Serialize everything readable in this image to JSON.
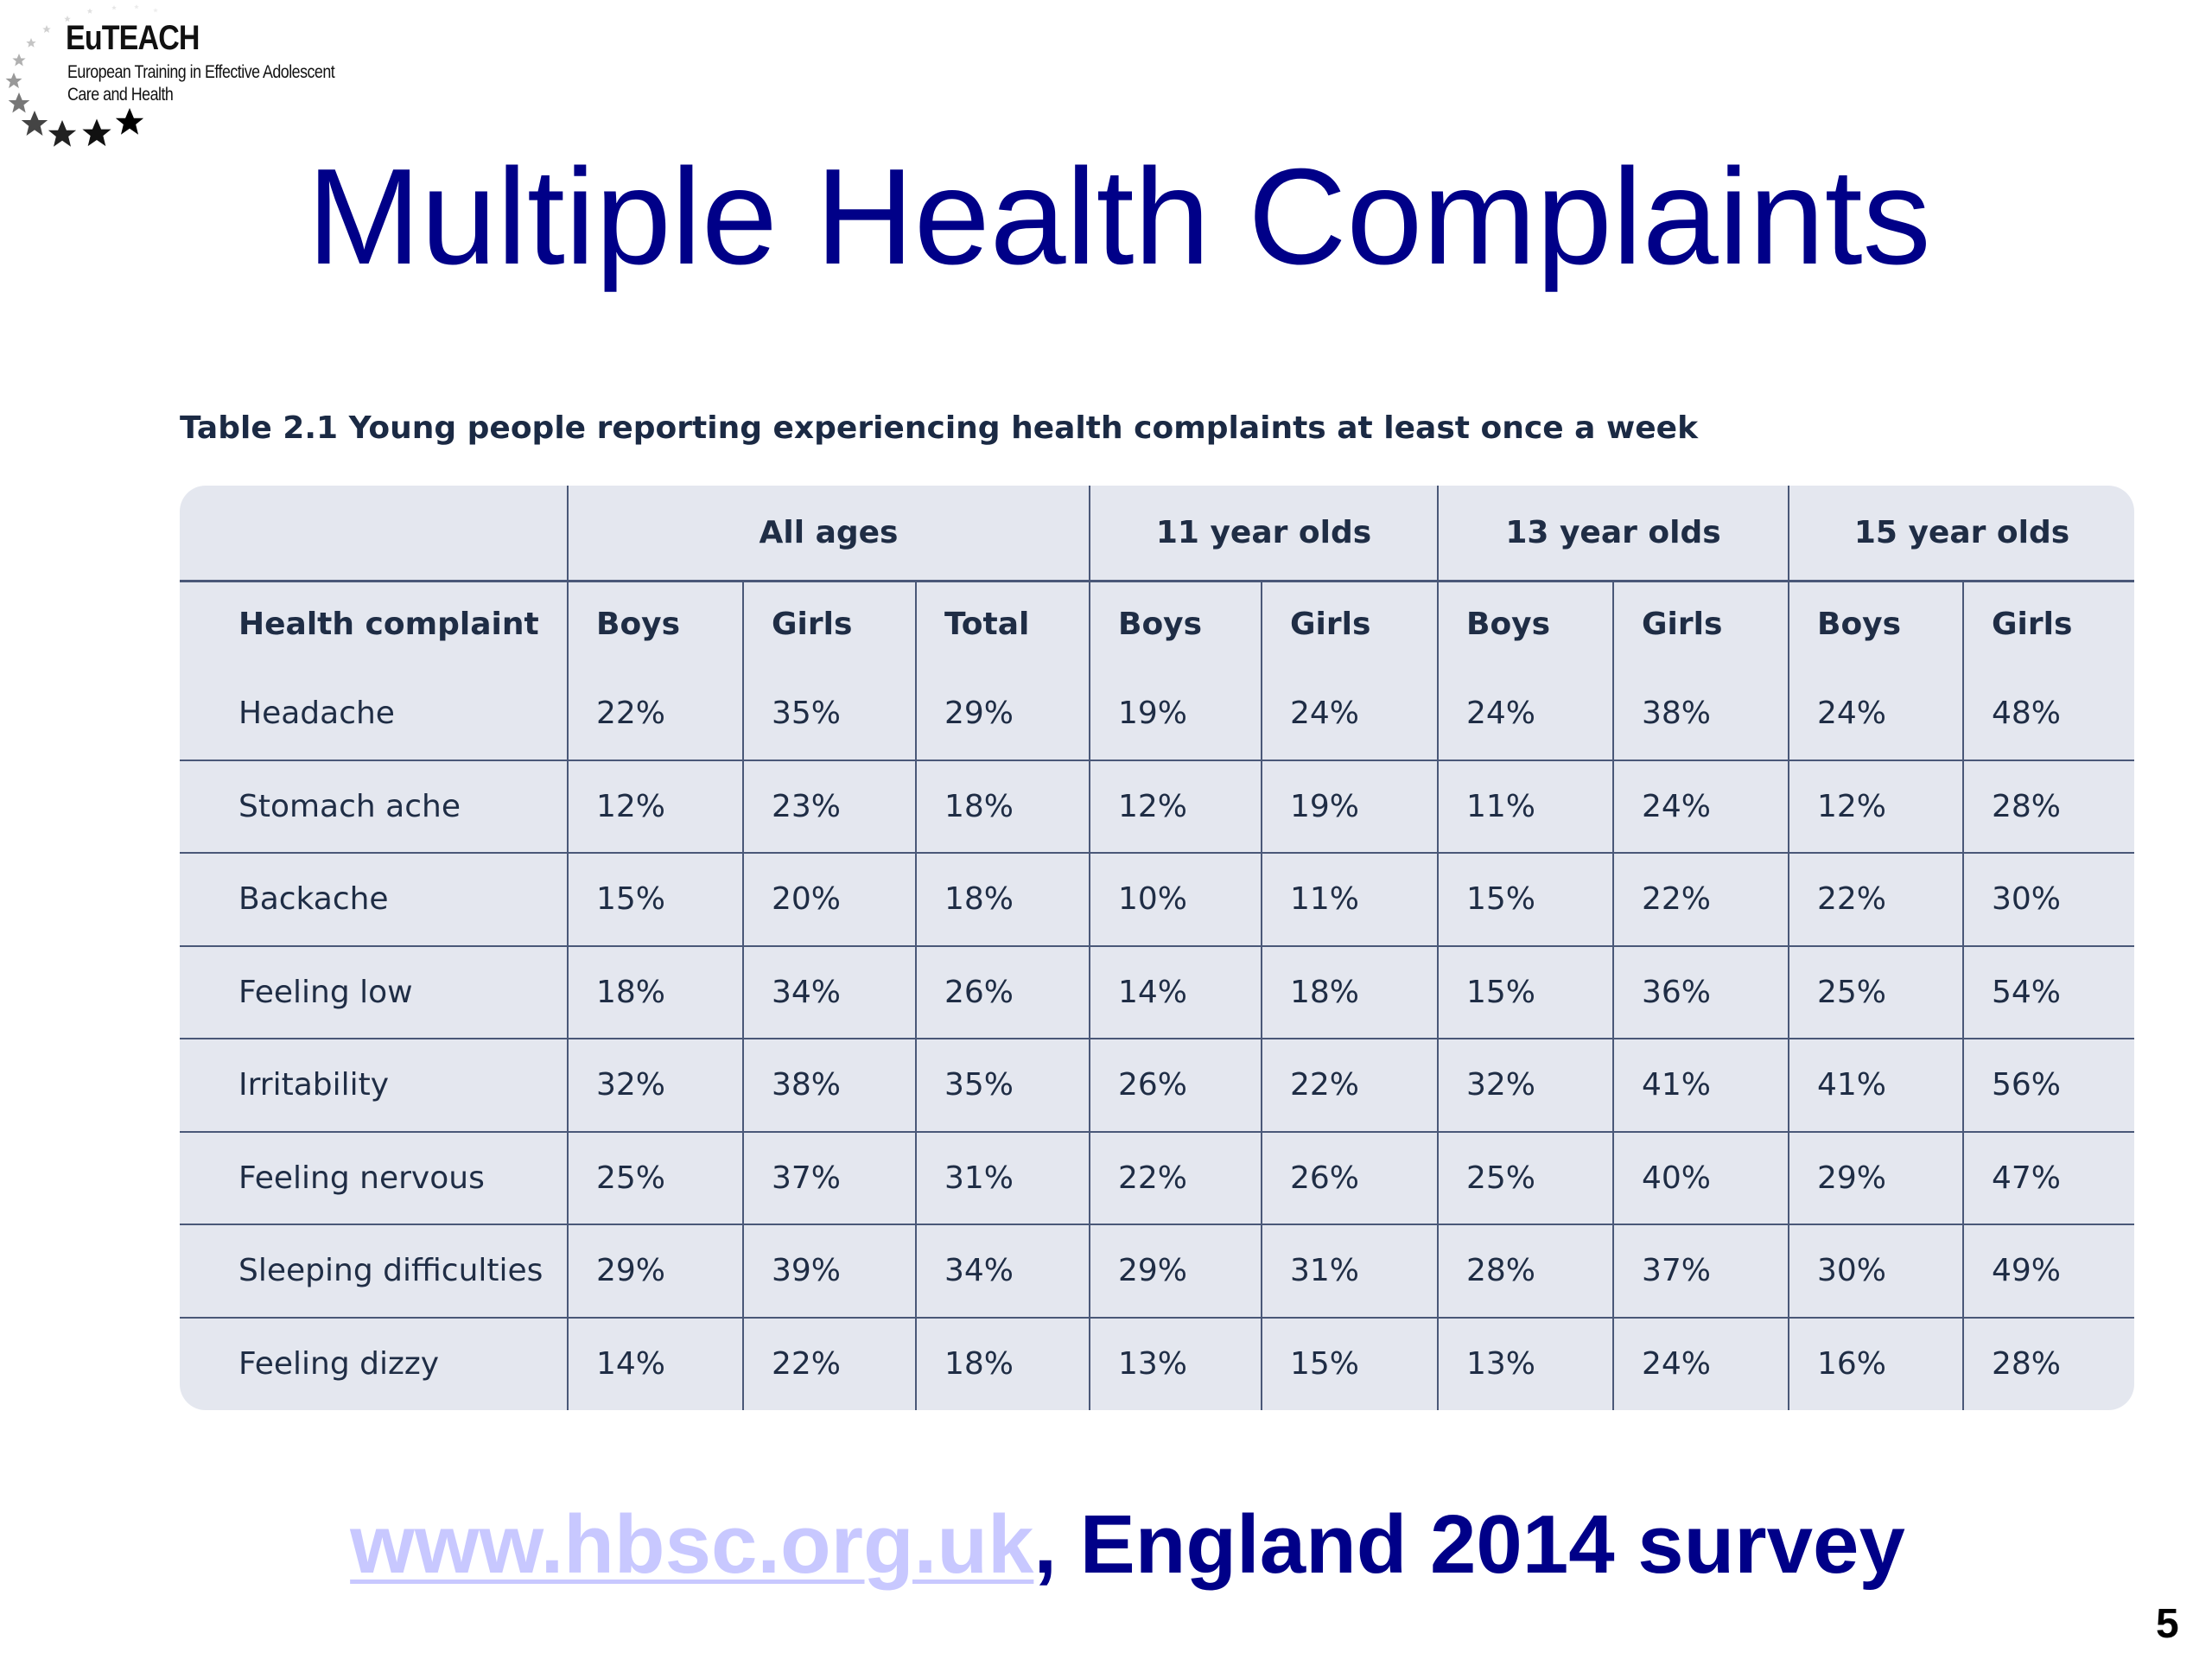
{
  "logo": {
    "name": "EuTEACH",
    "subtitle_line1": "European Training in Effective Adolescent",
    "subtitle_line2": "Care and Health"
  },
  "title": "Multiple Health Complaints",
  "caption": "Table 2.1 Young people reporting experiencing health complaints at least once a week",
  "table": {
    "groups": [
      "",
      "All ages",
      "11 year olds",
      "13 year olds",
      "15 year olds"
    ],
    "columns": [
      "Health complaint",
      "Boys",
      "Girls",
      "Total",
      "Boys",
      "Girls",
      "Boys",
      "Girls",
      "Boys",
      "Girls"
    ],
    "rows": [
      [
        "Headache",
        "22%",
        "35%",
        "29%",
        "19%",
        "24%",
        "24%",
        "38%",
        "24%",
        "48%"
      ],
      [
        "Stomach ache",
        "12%",
        "23%",
        "18%",
        "12%",
        "19%",
        "11%",
        "24%",
        "12%",
        "28%"
      ],
      [
        "Backache",
        "15%",
        "20%",
        "18%",
        "10%",
        "11%",
        "15%",
        "22%",
        "22%",
        "30%"
      ],
      [
        "Feeling low",
        "18%",
        "34%",
        "26%",
        "14%",
        "18%",
        "15%",
        "36%",
        "25%",
        "54%"
      ],
      [
        "Irritability",
        "32%",
        "38%",
        "35%",
        "26%",
        "22%",
        "32%",
        "41%",
        "41%",
        "56%"
      ],
      [
        "Feeling nervous",
        "25%",
        "37%",
        "31%",
        "22%",
        "26%",
        "25%",
        "40%",
        "29%",
        "47%"
      ],
      [
        "Sleeping difficulties",
        "29%",
        "39%",
        "34%",
        "29%",
        "31%",
        "28%",
        "37%",
        "30%",
        "49%"
      ],
      [
        "Feeling dizzy",
        "14%",
        "22%",
        "18%",
        "13%",
        "15%",
        "13%",
        "24%",
        "16%",
        "28%"
      ]
    ]
  },
  "footer": {
    "link_text": "www.hbsc.org.uk",
    "rest_text": ", England 2014 survey"
  },
  "page_number": "5",
  "colors": {
    "title": "#000088",
    "link": "#c8c8ff",
    "table_bg": "#e4e7ef",
    "table_text": "#1f2d45",
    "grid": "#4a5878"
  }
}
